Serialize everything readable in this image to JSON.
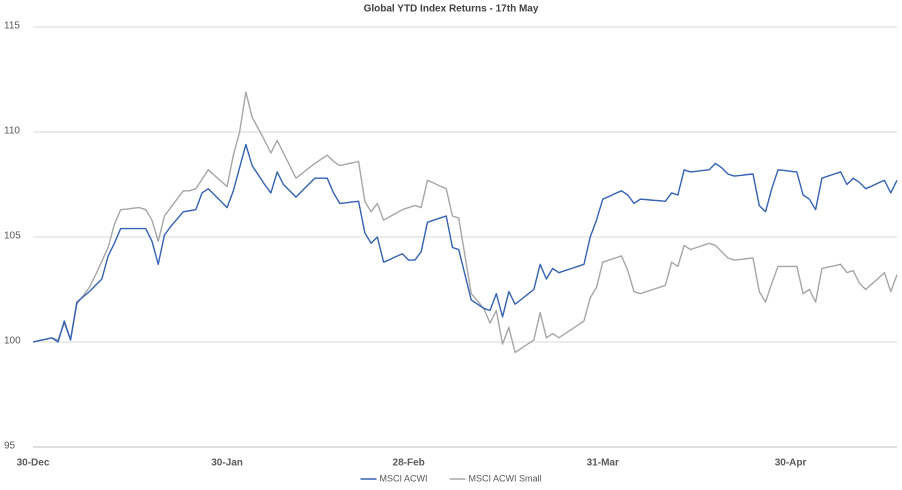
{
  "chart_data": {
    "type": "line",
    "title": "Global YTD Index Returns - 17th May",
    "categories": [
      "30-Dec",
      null,
      null,
      null,
      null,
      null,
      null,
      null,
      null,
      null,
      null,
      null,
      null,
      null,
      null,
      null,
      null,
      null,
      null,
      null,
      null,
      null,
      null,
      null,
      null,
      null,
      null,
      null,
      null,
      null,
      null,
      "30-Jan",
      null,
      null,
      null,
      null,
      null,
      null,
      null,
      null,
      null,
      null,
      null,
      null,
      null,
      null,
      null,
      null,
      null,
      null,
      null,
      null,
      null,
      null,
      null,
      null,
      null,
      null,
      null,
      null,
      "28-Feb",
      null,
      null,
      null,
      null,
      null,
      null,
      null,
      null,
      null,
      null,
      null,
      null,
      null,
      null,
      null,
      null,
      null,
      null,
      null,
      null,
      null,
      null,
      null,
      null,
      null,
      null,
      null,
      null,
      null,
      null,
      "31-Mar",
      null,
      null,
      null,
      null,
      null,
      null,
      null,
      null,
      null,
      null,
      null,
      null,
      null,
      null,
      null,
      null,
      null,
      null,
      null,
      null,
      null,
      null,
      null,
      null,
      null,
      null,
      null,
      null,
      null,
      "30-Apr",
      null,
      null,
      null,
      null,
      null,
      null,
      null,
      null,
      null,
      null,
      null,
      null,
      null,
      null,
      null,
      null,
      null
    ],
    "series": [
      {
        "name": "MSCI ACWI",
        "color": "#3462b4",
        "values": [
          100,
          100.07,
          100.13,
          100.2,
          100.0,
          101.0,
          100.1,
          101.9,
          102.15,
          102.4,
          102.7,
          103.0,
          104.1,
          104.7,
          105.4,
          105.4,
          105.4,
          105.4,
          105.4,
          104.8,
          103.7,
          105.1,
          105.5,
          105.85,
          106.2,
          106.25,
          106.3,
          107.1,
          107.3,
          107.0,
          106.7,
          106.4,
          107.2,
          108.3,
          109.4,
          108.4,
          107.95,
          107.5,
          107.1,
          108.1,
          107.5,
          107.2,
          106.9,
          107.2,
          107.5,
          107.8,
          107.8,
          107.8,
          107.1,
          106.6,
          106.63,
          106.67,
          106.7,
          105.2,
          104.7,
          105.0,
          103.8,
          103.93,
          104.07,
          104.2,
          103.9,
          103.9,
          104.3,
          105.7,
          105.8,
          105.9,
          106.0,
          104.5,
          104.4,
          103.2,
          102.0,
          101.8,
          101.6,
          101.5,
          102.3,
          101.2,
          102.4,
          101.8,
          102.03,
          102.27,
          102.5,
          103.7,
          103.0,
          103.5,
          103.3,
          103.4,
          103.5,
          103.6,
          103.7,
          105.0,
          105.8,
          106.8,
          106.93,
          107.07,
          107.2,
          107.0,
          106.6,
          106.8,
          106.78,
          106.75,
          106.73,
          106.7,
          107.1,
          107.0,
          108.2,
          108.1,
          108.13,
          108.17,
          108.2,
          108.5,
          108.3,
          108.0,
          107.9,
          107.93,
          107.97,
          108.0,
          106.5,
          106.2,
          107.3,
          108.2,
          108.17,
          108.13,
          108.1,
          107.0,
          106.8,
          106.3,
          107.8,
          107.9,
          108.0,
          108.1,
          107.5,
          107.8,
          107.6,
          107.3,
          107.43,
          107.57,
          107.7,
          107.1,
          107.7
        ]
      },
      {
        "name": "MSCI ACWI Small",
        "color": "#a6a6a6",
        "values": [
          100,
          100.07,
          100.13,
          100.2,
          100.1,
          100.9,
          100.1,
          101.8,
          102.2,
          102.6,
          103.2,
          103.85,
          104.5,
          105.6,
          106.3,
          106.33,
          106.37,
          106.4,
          106.3,
          105.8,
          104.8,
          106.0,
          106.4,
          106.8,
          107.2,
          107.2,
          107.3,
          107.75,
          108.2,
          107.93,
          107.67,
          107.4,
          108.9,
          110.0,
          111.9,
          110.7,
          110.15,
          109.6,
          109.0,
          109.6,
          109.0,
          108.4,
          107.8,
          108.03,
          108.27,
          108.5,
          108.7,
          108.9,
          108.6,
          108.4,
          108.47,
          108.53,
          108.6,
          106.7,
          106.2,
          106.6,
          105.8,
          105.97,
          106.13,
          106.3,
          106.4,
          106.5,
          106.4,
          107.7,
          107.57,
          107.43,
          107.3,
          106.0,
          105.9,
          104.1,
          102.3,
          101.95,
          101.6,
          100.9,
          101.5,
          99.9,
          100.7,
          99.5,
          99.7,
          99.9,
          100.1,
          101.4,
          100.2,
          100.4,
          100.2,
          100.4,
          100.6,
          100.8,
          101.0,
          102.1,
          102.6,
          103.8,
          103.9,
          104.0,
          104.1,
          103.4,
          102.4,
          102.3,
          102.4,
          102.5,
          102.6,
          102.7,
          103.8,
          103.6,
          104.6,
          104.4,
          104.5,
          104.6,
          104.7,
          104.6,
          104.3,
          104.0,
          103.9,
          103.93,
          103.97,
          104.0,
          102.4,
          101.9,
          102.8,
          103.6,
          103.6,
          103.6,
          103.6,
          102.3,
          102.5,
          101.9,
          103.5,
          103.57,
          103.63,
          103.7,
          103.3,
          103.4,
          102.8,
          102.5,
          102.77,
          103.03,
          103.3,
          102.4,
          103.2
        ]
      }
    ],
    "ylim": [
      95,
      115
    ],
    "yticks": [
      95,
      100,
      105,
      110,
      115
    ],
    "grid": true,
    "legend": "bottom"
  }
}
